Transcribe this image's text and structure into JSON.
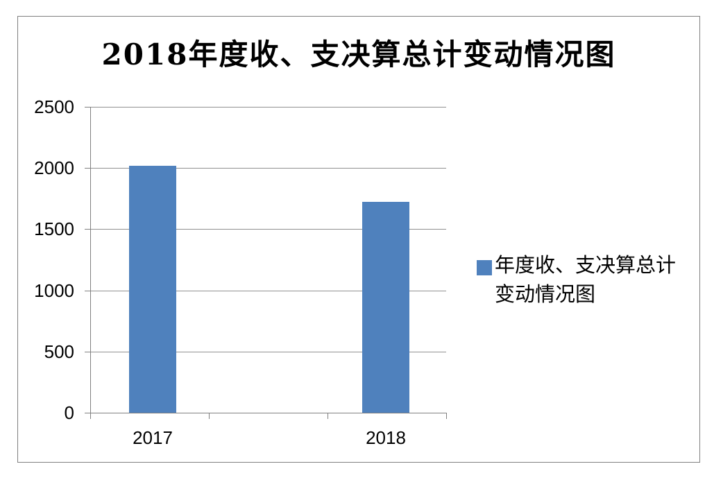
{
  "chart_data": {
    "type": "bar",
    "title": "2018年度收、支决算总计变动情况图",
    "categories": [
      "2017",
      "2018"
    ],
    "series": [
      {
        "name": "年度收、支决算总计变动情况图",
        "values": [
          2020,
          1723
        ]
      }
    ],
    "xlabel": "",
    "ylabel": "",
    "ylim": [
      0,
      2500
    ],
    "y_ticks": [
      0,
      500,
      1000,
      1500,
      2000,
      2500
    ],
    "grid": "horizontal-major",
    "legend_position": "right",
    "legend_label_lines": [
      "年度收、支决算总计",
      "变动情况图"
    ]
  },
  "colors": {
    "bar": "#4f81bd",
    "axis": "#7f7f7f",
    "gridline": "#8f8f8f",
    "border": "#7f7f7f",
    "text": "#000000",
    "background": "#ffffff"
  }
}
